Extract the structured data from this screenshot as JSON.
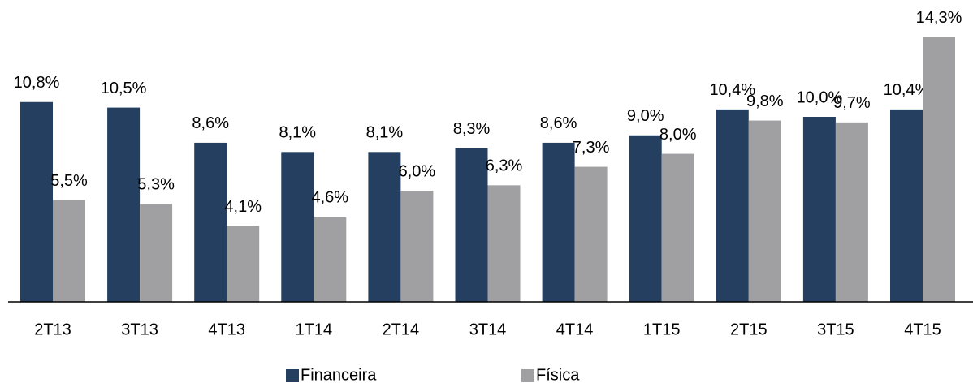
{
  "chart_data": {
    "type": "bar",
    "categories": [
      "2T13",
      "3T13",
      "4T13",
      "1T14",
      "2T14",
      "3T14",
      "4T14",
      "1T15",
      "2T15",
      "3T15",
      "4T15"
    ],
    "series": [
      {
        "name": "Financeira",
        "color": "#243f60",
        "values": [
          10.8,
          10.5,
          8.6,
          8.1,
          8.1,
          8.3,
          8.6,
          9.0,
          10.4,
          10.0,
          10.4
        ],
        "value_labels": [
          "10,8%",
          "10,5%",
          "8,6%",
          "8,1%",
          "8,1%",
          "8,3%",
          "8,6%",
          "9,0%",
          "10,4%",
          "10,0%",
          "10,4%"
        ]
      },
      {
        "name": "Física",
        "color": "#a0a0a2",
        "values": [
          5.5,
          5.3,
          4.1,
          4.6,
          6.0,
          6.3,
          7.3,
          8.0,
          9.8,
          9.7,
          14.3
        ],
        "value_labels": [
          "5,5%",
          "5,3%",
          "4,1%",
          "4,6%",
          "6,0%",
          "6,3%",
          "7,3%",
          "8,0%",
          "9,8%",
          "9,7%",
          "14,3%"
        ]
      }
    ],
    "legend": "bottom"
  }
}
